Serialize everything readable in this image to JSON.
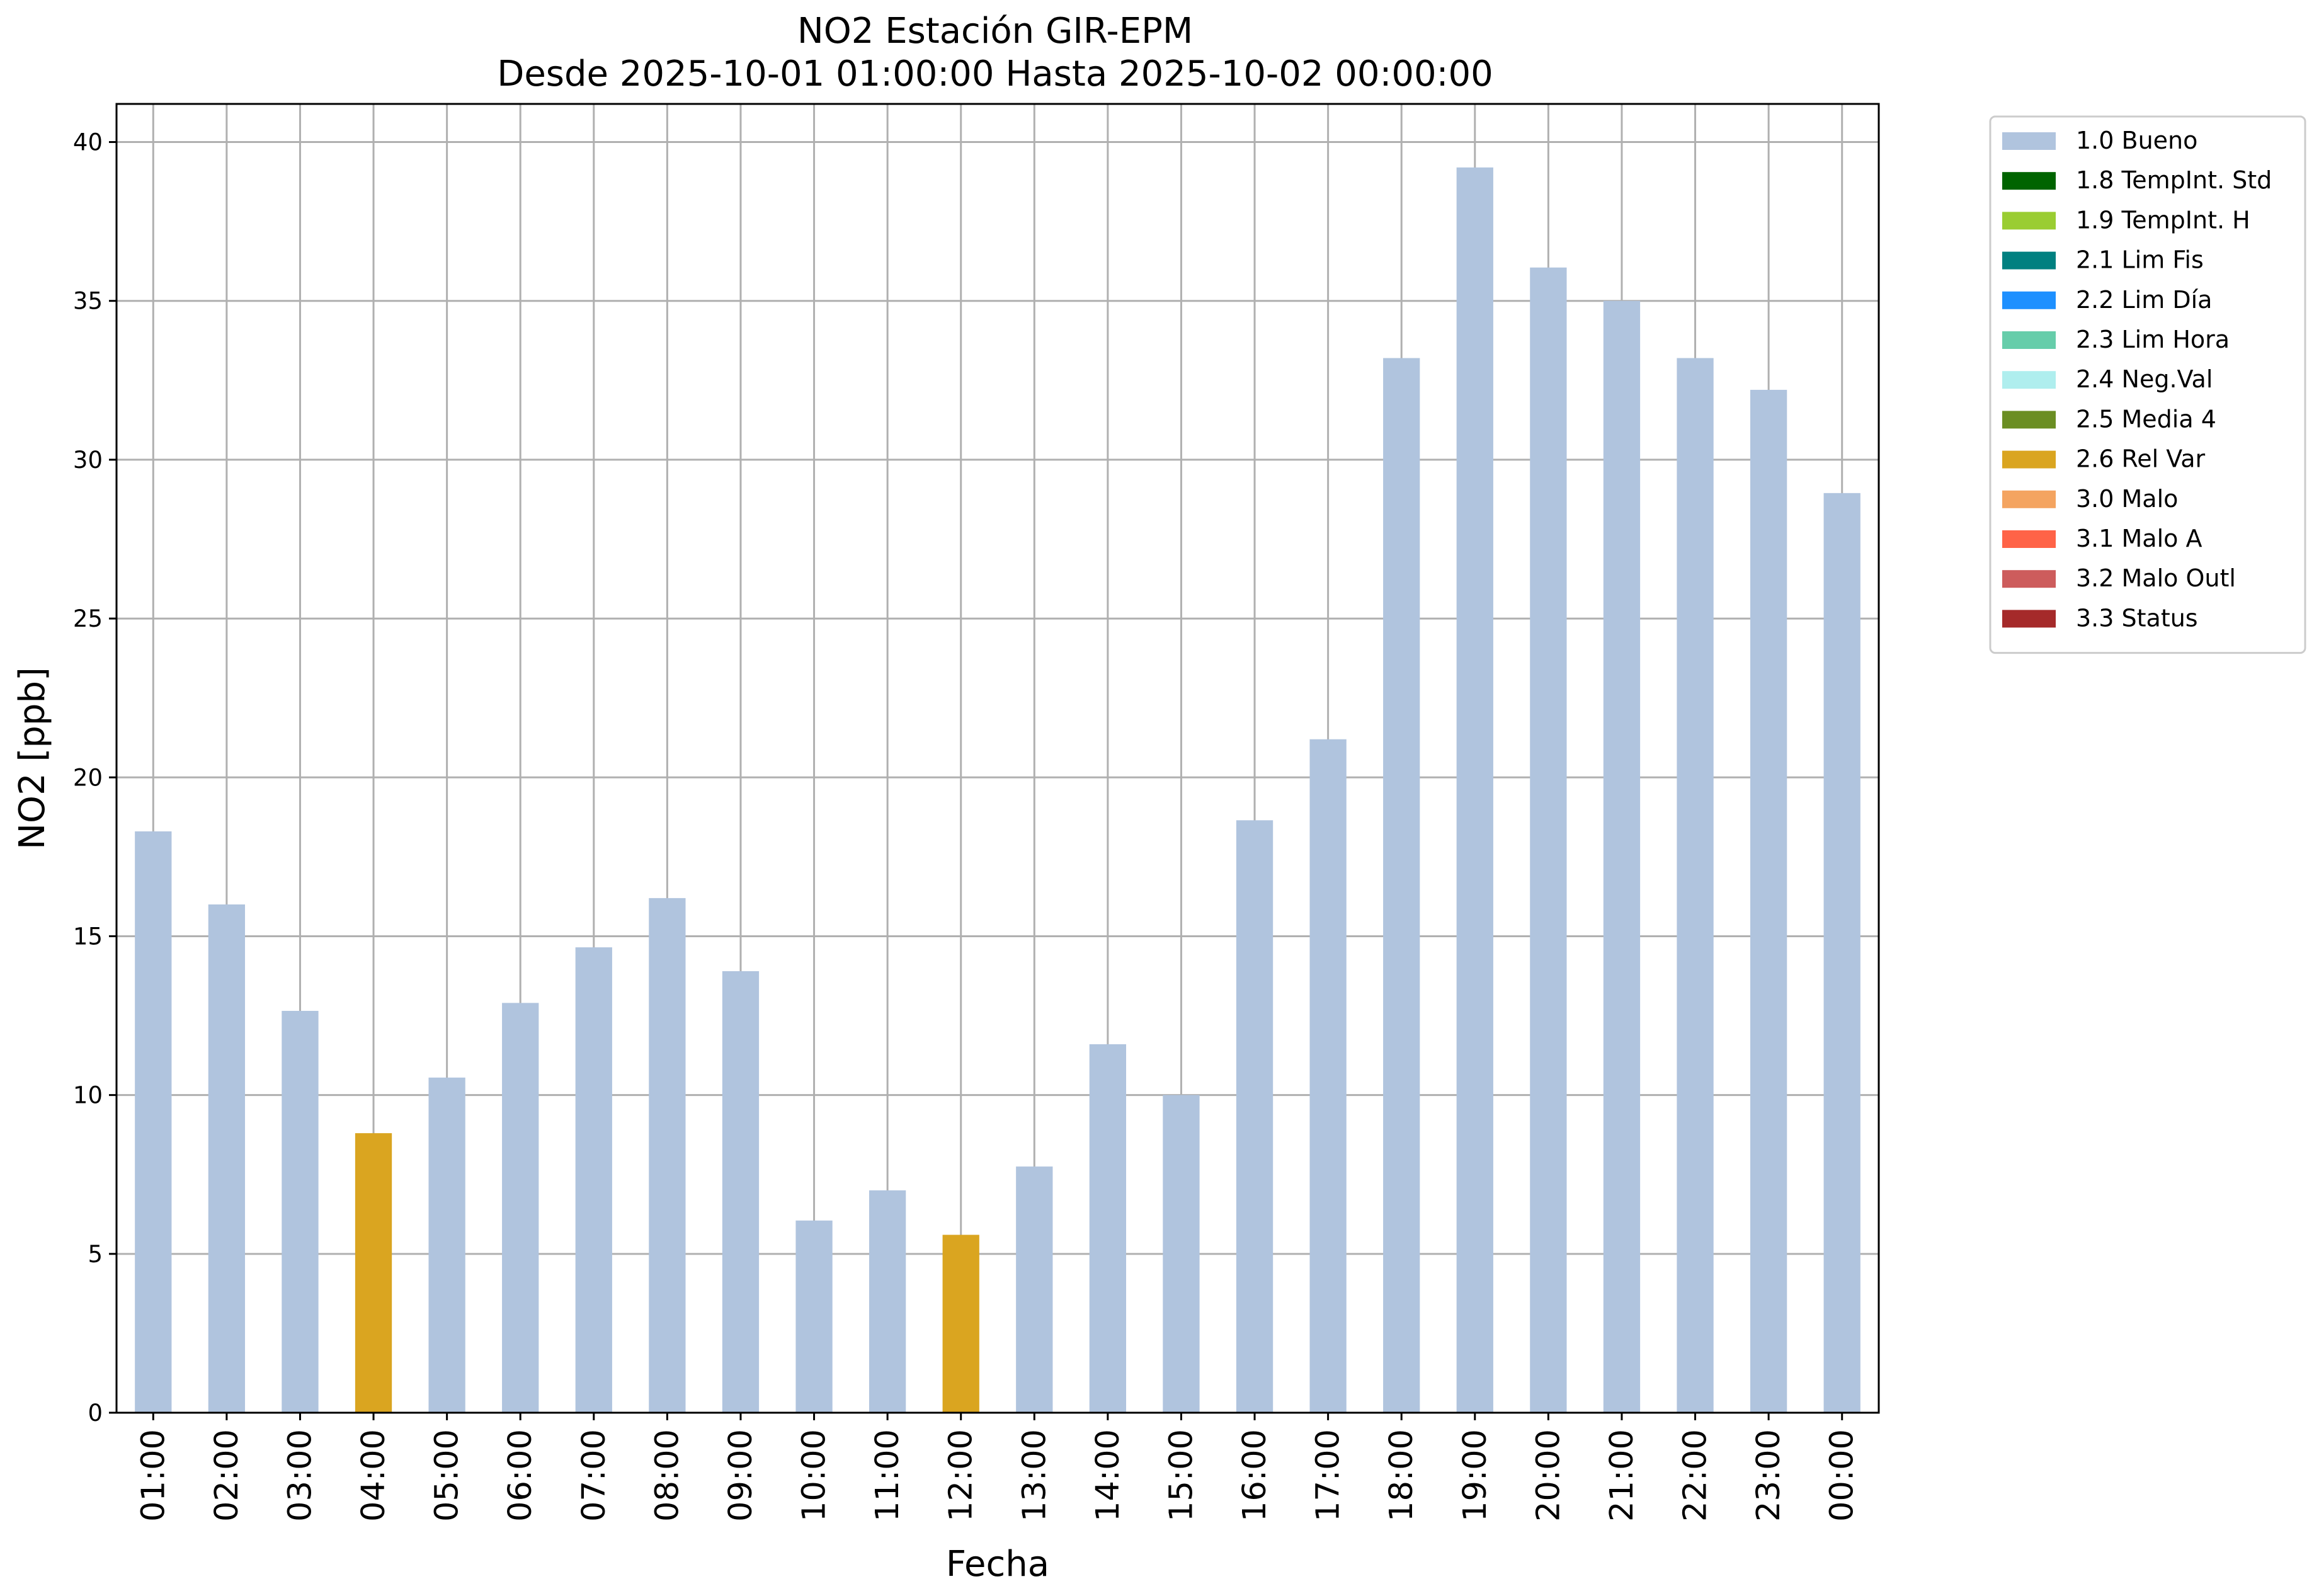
{
  "chart_data": {
    "type": "bar",
    "title": "NO2 Estación GIR-EPM",
    "subtitle": "Desde 2025-10-01 01:00:00 Hasta 2025-10-02 00:00:00",
    "xlabel": "Fecha",
    "ylabel": "NO2 [ppb]",
    "ylim": [
      0,
      41.2
    ],
    "yticks": [
      "0",
      "5",
      "10",
      "15",
      "20",
      "25",
      "30",
      "35",
      "40"
    ],
    "grid": true,
    "legend_position": "outside-top-right",
    "categories": [
      "01:00",
      "02:00",
      "03:00",
      "04:00",
      "05:00",
      "06:00",
      "07:00",
      "08:00",
      "09:00",
      "10:00",
      "11:00",
      "12:00",
      "13:00",
      "14:00",
      "15:00",
      "16:00",
      "17:00",
      "18:00",
      "19:00",
      "20:00",
      "21:00",
      "22:00",
      "23:00",
      "00:00"
    ],
    "values": [
      18.3,
      16.0,
      12.65,
      8.8,
      10.55,
      12.9,
      14.65,
      16.2,
      13.9,
      6.05,
      7.0,
      5.6,
      7.75,
      11.6,
      10.0,
      18.65,
      21.2,
      33.2,
      39.2,
      36.05,
      35.0,
      33.2,
      32.2,
      28.95
    ],
    "bar_flags": [
      "1.0 Bueno",
      "1.0 Bueno",
      "1.0 Bueno",
      "2.6 Rel Var",
      "1.0 Bueno",
      "1.0 Bueno",
      "1.0 Bueno",
      "1.0 Bueno",
      "1.0 Bueno",
      "1.0 Bueno",
      "1.0 Bueno",
      "2.6 Rel Var",
      "1.0 Bueno",
      "1.0 Bueno",
      "1.0 Bueno",
      "1.0 Bueno",
      "1.0 Bueno",
      "1.0 Bueno",
      "1.0 Bueno",
      "1.0 Bueno",
      "1.0 Bueno",
      "1.0 Bueno",
      "1.0 Bueno",
      "1.0 Bueno"
    ],
    "legend": [
      {
        "label": "1.0 Bueno",
        "color": "#b0c4de"
      },
      {
        "label": "1.8 TempInt. Std",
        "color": "#006400"
      },
      {
        "label": "1.9 TempInt. H",
        "color": "#9acd32"
      },
      {
        "label": "2.1 Lim Fis",
        "color": "#008080"
      },
      {
        "label": "2.2 Lim Día",
        "color": "#1e90ff"
      },
      {
        "label": "2.3 Lim Hora",
        "color": "#66cdaa"
      },
      {
        "label": "2.4 Neg.Val",
        "color": "#afeeee"
      },
      {
        "label": "2.5 Media 4",
        "color": "#6b8e23"
      },
      {
        "label": "2.6 Rel Var",
        "color": "#daa520"
      },
      {
        "label": "3.0 Malo",
        "color": "#f4a460"
      },
      {
        "label": "3.1 Malo A",
        "color": "#ff6347"
      },
      {
        "label": "3.2 Malo Outl",
        "color": "#cd5c5c"
      },
      {
        "label": "3.3 Status",
        "color": "#a52a2a"
      }
    ]
  }
}
